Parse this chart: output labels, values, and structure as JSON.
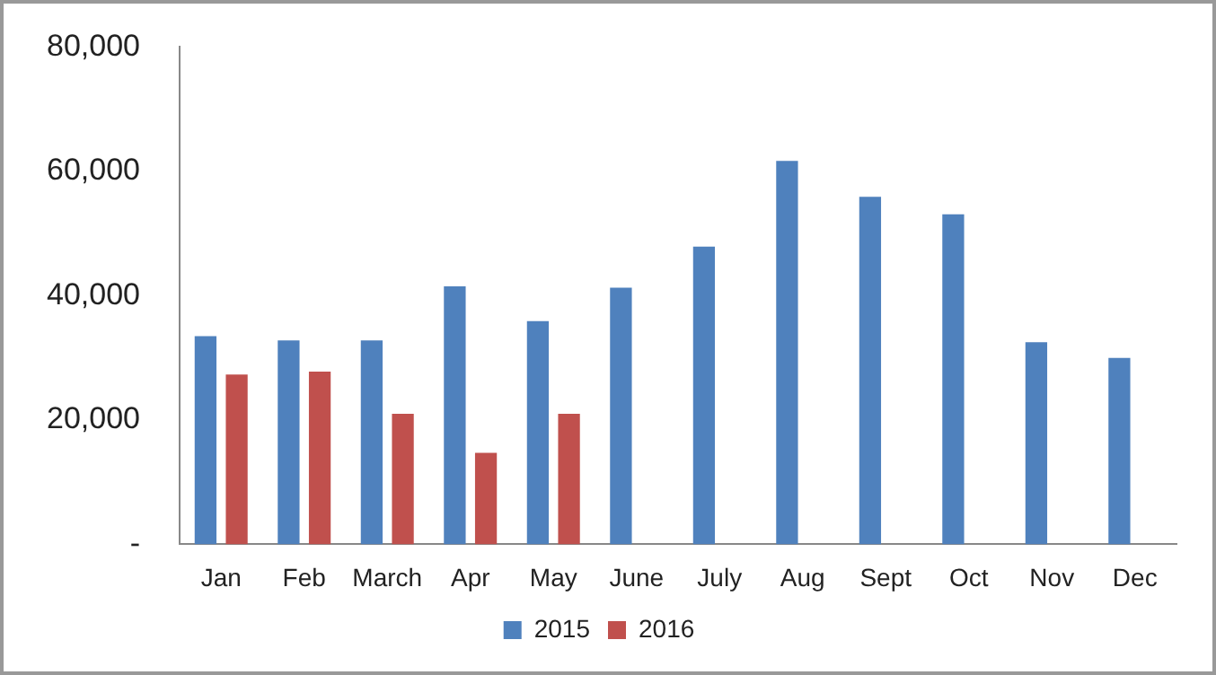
{
  "chart_data": {
    "type": "bar",
    "categories": [
      "Jan",
      "Feb",
      "March",
      "Apr",
      "May",
      "June",
      "July",
      "Aug",
      "Sept",
      "Oct",
      "Nov",
      "Dec"
    ],
    "series": [
      {
        "name": "2015",
        "color": "#4f81bd",
        "values": [
          33500,
          32800,
          32800,
          41500,
          35900,
          41300,
          47900,
          61700,
          55900,
          53100,
          32500,
          30000
        ]
      },
      {
        "name": "2016",
        "color": "#c0504d",
        "values": [
          27300,
          27800,
          21000,
          14700,
          21000,
          null,
          null,
          null,
          null,
          null,
          null,
          null
        ]
      }
    ],
    "ylim": [
      0,
      80000
    ],
    "yticks": [
      {
        "value": 0,
        "label": "-"
      },
      {
        "value": 20000,
        "label": "20,000"
      },
      {
        "value": 40000,
        "label": "40,000"
      },
      {
        "value": 60000,
        "label": "60,000"
      },
      {
        "value": 80000,
        "label": "80,000"
      }
    ],
    "grid": false,
    "legend": "bottom"
  }
}
